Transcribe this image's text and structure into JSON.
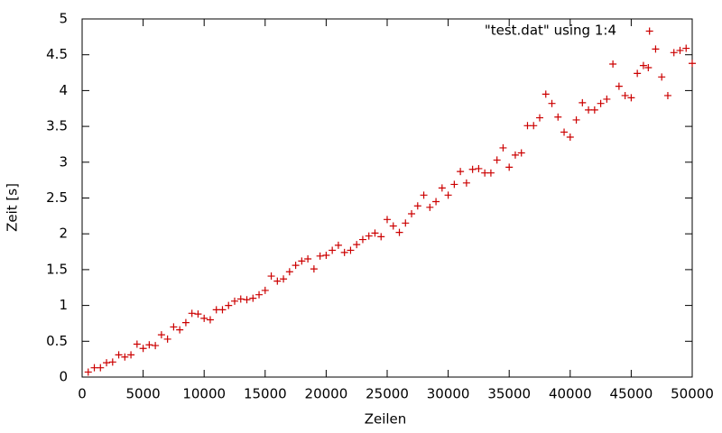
{
  "chart_data": {
    "type": "scatter",
    "xlabel": "Zeilen",
    "ylabel": "Zeit [s]",
    "xlim": [
      0,
      50000
    ],
    "ylim": [
      0,
      5
    ],
    "xticks": [
      0,
      5000,
      10000,
      15000,
      20000,
      25000,
      30000,
      35000,
      40000,
      45000,
      50000
    ],
    "yticks": [
      0,
      0.5,
      1,
      1.5,
      2,
      2.5,
      3,
      3.5,
      4,
      4.5,
      5
    ],
    "legend": "top-right",
    "series": [
      {
        "name": "\"test.dat\" using 1:4",
        "color": "#cc0000",
        "x": [
          500,
          1000,
          1500,
          2000,
          2500,
          3000,
          3500,
          4000,
          4500,
          5000,
          5500,
          6000,
          6500,
          7000,
          7500,
          8000,
          8500,
          9000,
          9500,
          10000,
          10500,
          11000,
          11500,
          12000,
          12500,
          13000,
          13500,
          14000,
          14500,
          15000,
          15500,
          16000,
          16500,
          17000,
          17500,
          18000,
          18500,
          19000,
          19500,
          20000,
          20500,
          21000,
          21500,
          22000,
          22500,
          23000,
          23500,
          24000,
          24500,
          25000,
          25500,
          26000,
          26500,
          27000,
          27500,
          28000,
          28500,
          29000,
          29500,
          30000,
          30500,
          31000,
          31500,
          32000,
          32500,
          33000,
          33500,
          34000,
          34500,
          35000,
          35500,
          36000,
          36500,
          37000,
          37500,
          38000,
          38500,
          39000,
          39500,
          40000,
          40500,
          41000,
          41500,
          42000,
          42500,
          43000,
          43500,
          44000,
          44500,
          45000,
          45500,
          46000,
          46400,
          46500,
          47000,
          47500,
          48000,
          48500,
          49000,
          49500,
          50000
        ],
        "values": [
          0.07,
          0.13,
          0.13,
          0.2,
          0.21,
          0.31,
          0.28,
          0.31,
          0.46,
          0.4,
          0.45,
          0.44,
          0.59,
          0.53,
          0.7,
          0.66,
          0.76,
          0.89,
          0.88,
          0.82,
          0.8,
          0.94,
          0.94,
          1.0,
          1.06,
          1.09,
          1.08,
          1.1,
          1.15,
          1.21,
          1.41,
          1.34,
          1.37,
          1.47,
          1.56,
          1.62,
          1.65,
          1.51,
          1.69,
          1.7,
          1.77,
          1.84,
          1.74,
          1.77,
          1.85,
          1.92,
          1.97,
          2.01,
          1.96,
          2.2,
          2.11,
          2.02,
          2.15,
          2.28,
          2.39,
          2.54,
          2.37,
          2.45,
          2.64,
          2.54,
          2.69,
          2.87,
          2.71,
          2.9,
          2.91,
          2.85,
          2.85,
          3.03,
          3.2,
          2.93,
          3.1,
          3.13,
          3.51,
          3.51,
          3.62,
          3.95,
          3.82,
          3.63,
          3.42,
          3.35,
          3.59,
          3.83,
          3.73,
          3.73,
          3.82,
          3.88,
          4.37,
          4.06,
          3.93,
          3.9,
          4.24,
          4.35,
          4.32,
          4.83,
          4.58,
          4.19,
          3.93,
          4.53,
          4.56,
          4.59,
          4.38
        ]
      }
    ]
  }
}
